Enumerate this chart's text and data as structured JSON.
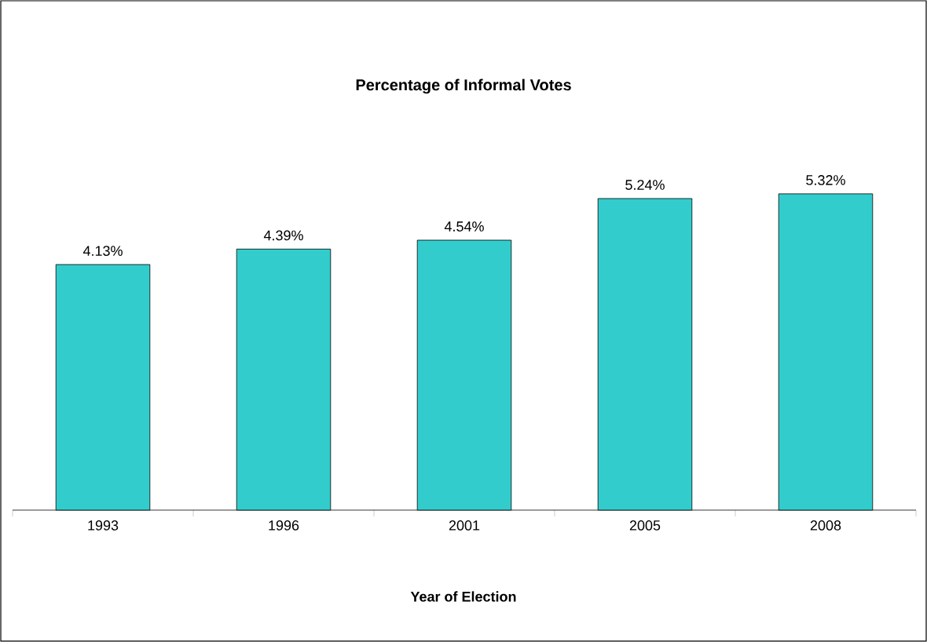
{
  "chart_data": {
    "type": "bar",
    "title": "**Percentage of Informal Votes**",
    "xlabel": "**Year of Election**",
    "categories": [
      "1993",
      "1996",
      "2001",
      "2005",
      "2008"
    ],
    "values": [
      4.13,
      4.39,
      4.54,
      5.24,
      5.32
    ],
    "value_labels": [
      "4.13%",
      "4.39%",
      "4.54%",
      "5.24%",
      "5.32%"
    ],
    "color": "#33cccc"
  }
}
